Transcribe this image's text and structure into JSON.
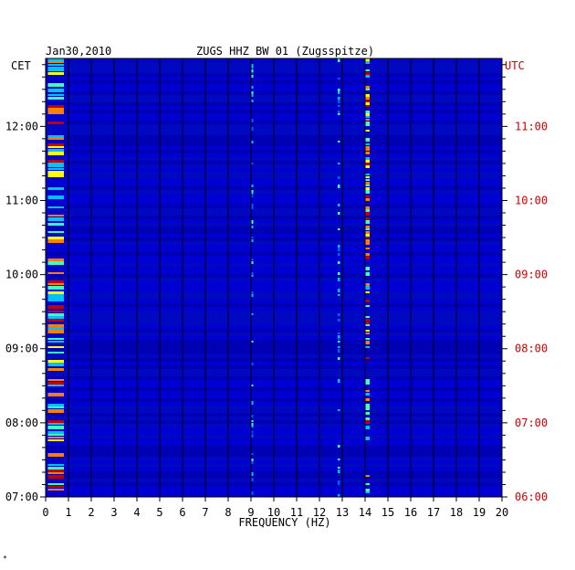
{
  "header": {
    "date": "Jan30,2010",
    "station": "ZUGS HHZ BW 01 (Zugsspitze)",
    "left_tz": "CET",
    "right_tz": "UTC"
  },
  "footer_mark": "*",
  "colors": {
    "background": "#00009c",
    "grid": "#000000",
    "utc_label": "#cc0000",
    "text": "#000000"
  },
  "chart_data": {
    "type": "heatmap",
    "title": "ZUGS HHZ BW 01 (Zugsspitze)",
    "subtitle": "Jan30,2010",
    "xlabel": "FREQUENCY (HZ)",
    "ylabel": "",
    "x_range": [
      0,
      20
    ],
    "x_ticks": [
      "0",
      "1",
      "2",
      "3",
      "4",
      "5",
      "6",
      "7",
      "8",
      "9",
      "10",
      "11",
      "12",
      "13",
      "14",
      "15",
      "16",
      "17",
      "18",
      "19",
      "20"
    ],
    "y_ticks_left_cet": [
      "12:00",
      "11:00",
      "10:00",
      "09:00",
      "08:00",
      "07:00"
    ],
    "y_ticks_right_utc": [
      "11:00",
      "10:00",
      "09:00",
      "08:00",
      "07:00",
      "06:00"
    ],
    "time_range_cet": [
      "07:00",
      "12:55"
    ],
    "color_scale": [
      "#00009c",
      "#0000ff",
      "#0060ff",
      "#00c0ff",
      "#40ffc0",
      "#ffff00",
      "#ff8000",
      "#c00000"
    ],
    "grid": true,
    "features": [
      {
        "freq_hz": [
          0.1,
          0.8
        ],
        "intensity": "high",
        "note": "persistent low-frequency energy"
      },
      {
        "freq_hz": [
          9.0,
          9.1
        ],
        "intensity": "medium",
        "note": "narrow line"
      },
      {
        "freq_hz": [
          12.8,
          12.9
        ],
        "intensity": "medium",
        "note": "narrow line"
      },
      {
        "freq_hz": [
          14.0,
          14.2
        ],
        "intensity": "high",
        "note": "narrow line"
      }
    ]
  }
}
